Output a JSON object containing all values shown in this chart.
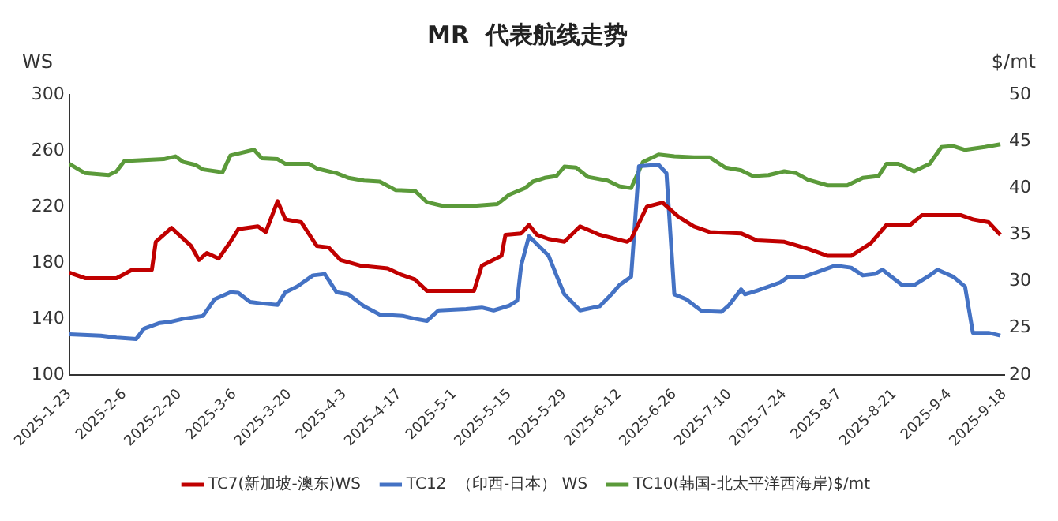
{
  "chart_data": {
    "type": "line",
    "title": "MR  代表航线走势",
    "ylabel": "WS",
    "y2label": "$/mt",
    "xlim": [
      "2025-01-23",
      "2025-09-18"
    ],
    "xticks": [
      {
        "value": "2025-01-23",
        "label": "2025-1-23"
      },
      {
        "value": "2025-02-06",
        "label": "2025-2-6"
      },
      {
        "value": "2025-02-20",
        "label": "2025-2-20"
      },
      {
        "value": "2025-03-06",
        "label": "2025-3-6"
      },
      {
        "value": "2025-03-20",
        "label": "2025-3-20"
      },
      {
        "value": "2025-04-03",
        "label": "2025-4-3"
      },
      {
        "value": "2025-04-17",
        "label": "2025-4-17"
      },
      {
        "value": "2025-05-01",
        "label": "2025-5-1"
      },
      {
        "value": "2025-05-15",
        "label": "2025-5-15"
      },
      {
        "value": "2025-05-29",
        "label": "2025-5-29"
      },
      {
        "value": "2025-06-12",
        "label": "2025-6-12"
      },
      {
        "value": "2025-06-26",
        "label": "2025-6-26"
      },
      {
        "value": "2025-07-10",
        "label": "2025-7-10"
      },
      {
        "value": "2025-07-24",
        "label": "2025-7-24"
      },
      {
        "value": "2025-08-07",
        "label": "2025-8-7"
      },
      {
        "value": "2025-08-21",
        "label": "2025-8-21"
      },
      {
        "value": "2025-09-04",
        "label": "2025-9-4"
      },
      {
        "value": "2025-09-18",
        "label": "2025-9-18"
      }
    ],
    "ylim": [
      100,
      300
    ],
    "yticks": [
      100,
      140,
      180,
      220,
      260,
      300
    ],
    "y2lim": [
      20,
      50
    ],
    "y2ticks": [
      20,
      25,
      30,
      35,
      40,
      45,
      50
    ],
    "legend": "bottom",
    "grid": false,
    "marker": "none",
    "line_style": "solid",
    "series": [
      {
        "name": "TC7(新加坡-澳东)WS",
        "color": "#c00000",
        "x": [
          "2025-01-23",
          "2025-01-27",
          "2025-02-04",
          "2025-02-08",
          "2025-02-13",
          "2025-02-14",
          "2025-02-18",
          "2025-02-23",
          "2025-02-25",
          "2025-02-27",
          "2025-03-02",
          "2025-03-05",
          "2025-03-07",
          "2025-03-12",
          "2025-03-14",
          "2025-03-17",
          "2025-03-19",
          "2025-03-23",
          "2025-03-27",
          "2025-03-30",
          "2025-04-02",
          "2025-04-07",
          "2025-04-14",
          "2025-04-17",
          "2025-04-21",
          "2025-04-24",
          "2025-05-06",
          "2025-05-08",
          "2025-05-13",
          "2025-05-14",
          "2025-05-18",
          "2025-05-20",
          "2025-05-22",
          "2025-05-25",
          "2025-05-29",
          "2025-06-02",
          "2025-06-07",
          "2025-06-14",
          "2025-06-15",
          "2025-06-19",
          "2025-06-23",
          "2025-06-27",
          "2025-07-01",
          "2025-07-05",
          "2025-07-13",
          "2025-07-17",
          "2025-07-24",
          "2025-07-30",
          "2025-08-04",
          "2025-08-10",
          "2025-08-15",
          "2025-08-19",
          "2025-08-25",
          "2025-08-28",
          "2025-09-07",
          "2025-09-10",
          "2025-09-14",
          "2025-09-17"
        ],
        "values": [
          173,
          169,
          169,
          175,
          175,
          195,
          205,
          192,
          182,
          187,
          183,
          195,
          204,
          206,
          202,
          224,
          211,
          209,
          192,
          191,
          182,
          178,
          176,
          172,
          168,
          160,
          160,
          178,
          185,
          200,
          201,
          207,
          200,
          197,
          195,
          206,
          200,
          195,
          197,
          220,
          223,
          213,
          206,
          202,
          201,
          196,
          195,
          190,
          185,
          185,
          194,
          207,
          207,
          214,
          214,
          211,
          209,
          200
        ]
      },
      {
        "name": "TC12  （印西-日本） WS",
        "color": "#4472c4",
        "x": [
          "2025-01-23",
          "2025-01-31",
          "2025-02-04",
          "2025-02-09",
          "2025-02-11",
          "2025-02-15",
          "2025-02-18",
          "2025-02-21",
          "2025-02-26",
          "2025-03-01",
          "2025-03-05",
          "2025-03-07",
          "2025-03-10",
          "2025-03-13",
          "2025-03-17",
          "2025-03-19",
          "2025-03-22",
          "2025-03-26",
          "2025-03-29",
          "2025-04-01",
          "2025-04-04",
          "2025-04-08",
          "2025-04-12",
          "2025-04-18",
          "2025-04-21",
          "2025-04-24",
          "2025-04-27",
          "2025-05-04",
          "2025-05-08",
          "2025-05-11",
          "2025-05-15",
          "2025-05-17",
          "2025-05-18",
          "2025-05-20",
          "2025-05-25",
          "2025-05-27",
          "2025-05-29",
          "2025-06-02",
          "2025-06-07",
          "2025-06-10",
          "2025-06-12",
          "2025-06-15",
          "2025-06-17",
          "2025-06-22",
          "2025-06-24",
          "2025-06-26",
          "2025-06-29",
          "2025-07-03",
          "2025-07-08",
          "2025-07-10",
          "2025-07-13",
          "2025-07-14",
          "2025-07-17",
          "2025-07-23",
          "2025-07-25",
          "2025-07-29",
          "2025-08-01",
          "2025-08-06",
          "2025-08-10",
          "2025-08-13",
          "2025-08-16",
          "2025-08-18",
          "2025-08-23",
          "2025-08-26",
          "2025-08-30",
          "2025-09-01",
          "2025-09-05",
          "2025-09-08",
          "2025-09-10",
          "2025-09-14",
          "2025-09-17"
        ],
        "values": [
          129,
          128,
          126.5,
          125.5,
          133,
          137,
          138,
          140,
          142,
          154,
          159,
          158.5,
          152,
          151,
          150,
          159,
          163,
          171,
          172,
          159,
          157.5,
          149,
          143,
          142,
          140,
          138.5,
          146,
          147,
          148,
          146,
          149.5,
          153,
          178,
          199,
          185,
          171,
          157.5,
          146,
          149,
          157.5,
          164,
          170,
          249,
          250,
          244,
          157.5,
          154,
          145.5,
          145,
          150,
          161,
          157.5,
          160,
          166,
          170,
          170,
          173,
          178,
          176.5,
          171,
          172,
          175,
          164,
          164,
          171,
          175,
          170,
          163,
          130,
          130,
          128
        ]
      },
      {
        "name": "TC10(韩国-北太平洋西海岸)$/mt",
        "color": "#5b9a3a",
        "axis": "y2",
        "x": [
          "2025-01-23",
          "2025-01-27",
          "2025-02-02",
          "2025-02-04",
          "2025-02-06",
          "2025-02-11",
          "2025-02-16",
          "2025-02-19",
          "2025-02-21",
          "2025-02-24",
          "2025-02-26",
          "2025-03-03",
          "2025-03-05",
          "2025-03-11",
          "2025-03-13",
          "2025-03-17",
          "2025-03-19",
          "2025-03-25",
          "2025-03-27",
          "2025-04-01",
          "2025-04-04",
          "2025-04-08",
          "2025-04-12",
          "2025-04-16",
          "2025-04-21",
          "2025-04-24",
          "2025-04-28",
          "2025-05-06",
          "2025-05-12",
          "2025-05-15",
          "2025-05-19",
          "2025-05-21",
          "2025-05-24",
          "2025-05-27",
          "2025-05-29",
          "2025-06-01",
          "2025-06-04",
          "2025-06-09",
          "2025-06-12",
          "2025-06-15",
          "2025-06-18",
          "2025-06-22",
          "2025-06-26",
          "2025-07-01",
          "2025-07-05",
          "2025-07-09",
          "2025-07-13",
          "2025-07-16",
          "2025-07-20",
          "2025-07-24",
          "2025-07-27",
          "2025-07-30",
          "2025-08-04",
          "2025-08-09",
          "2025-08-13",
          "2025-08-17",
          "2025-08-19",
          "2025-08-22",
          "2025-08-26",
          "2025-08-30",
          "2025-09-02",
          "2025-09-05",
          "2025-09-08",
          "2025-09-13",
          "2025-09-17"
        ],
        "values": [
          42.6,
          41.6,
          41.4,
          41.8,
          42.9,
          43.0,
          43.1,
          43.4,
          42.8,
          42.5,
          42.0,
          41.7,
          43.5,
          44.1,
          43.2,
          43.1,
          42.6,
          42.6,
          42.1,
          41.6,
          41.1,
          40.8,
          40.7,
          39.8,
          39.7,
          38.5,
          38.1,
          38.1,
          38.3,
          39.3,
          40.0,
          40.7,
          41.1,
          41.3,
          42.3,
          42.2,
          41.2,
          40.8,
          40.2,
          40.0,
          42.8,
          43.6,
          43.4,
          43.3,
          43.3,
          42.2,
          41.9,
          41.3,
          41.4,
          41.8,
          41.6,
          40.9,
          40.3,
          40.3,
          41.1,
          41.3,
          42.6,
          42.6,
          41.8,
          42.6,
          44.4,
          44.5,
          44.1,
          44.4,
          44.7
        ]
      }
    ]
  }
}
